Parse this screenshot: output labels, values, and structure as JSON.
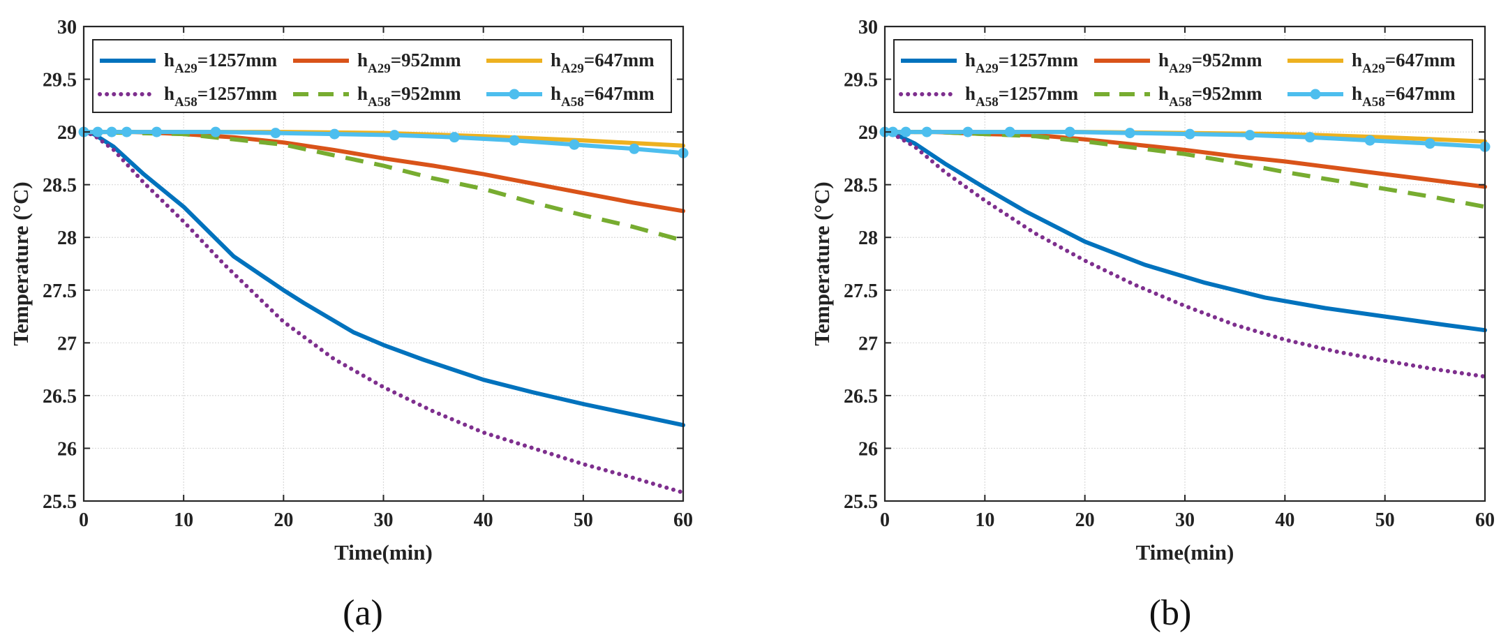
{
  "figure": {
    "series_colors": {
      "A29_1257": "#0072BD",
      "A29_952": "#D95319",
      "A29_647": "#EDB120",
      "A58_1257": "#7E2F8E",
      "A58_952": "#77AC30",
      "A58_647": "#4DBEEE"
    }
  },
  "chart_data": [
    {
      "type": "line",
      "panel_label": "(a)",
      "xlabel": "Time(min)",
      "ylabel": "Temperature (°C)",
      "xlim": [
        0,
        60
      ],
      "ylim": [
        25.5,
        30
      ],
      "xticks": [
        "0",
        "10",
        "20",
        "30",
        "40",
        "50",
        "60"
      ],
      "yticks": [
        "25.5",
        "26",
        "26.5",
        "27",
        "27.5",
        "28",
        "28.5",
        "29",
        "29.5",
        "30"
      ],
      "grid": true,
      "legend_position": "top",
      "series": [
        {
          "key": "A29_1257",
          "name_main": "h",
          "name_sub": "A29",
          "name_rest": "=1257mm",
          "style": "solid",
          "x": [
            0,
            1,
            3,
            6,
            10,
            15,
            20,
            22,
            27,
            30,
            34,
            40,
            45,
            50,
            55,
            60
          ],
          "values": [
            29.0,
            28.98,
            28.86,
            28.6,
            28.29,
            27.82,
            27.5,
            27.38,
            27.1,
            26.98,
            26.84,
            26.65,
            26.53,
            26.42,
            26.32,
            26.22
          ]
        },
        {
          "key": "A29_952",
          "name_main": "h",
          "name_sub": "A29",
          "name_rest": "=952mm",
          "style": "solid",
          "x": [
            0,
            5,
            10,
            15,
            20,
            25,
            30,
            35,
            40,
            45,
            50,
            55,
            60
          ],
          "values": [
            29.0,
            29.0,
            28.98,
            28.95,
            28.9,
            28.83,
            28.75,
            28.68,
            28.6,
            28.51,
            28.42,
            28.33,
            28.25
          ]
        },
        {
          "key": "A29_647",
          "name_main": "h",
          "name_sub": "A29",
          "name_rest": "=647mm",
          "style": "solid",
          "x": [
            0,
            10,
            20,
            30,
            40,
            50,
            60
          ],
          "values": [
            29.0,
            29.0,
            29.0,
            28.99,
            28.96,
            28.92,
            28.87
          ]
        },
        {
          "key": "A58_1257",
          "name_main": "h",
          "name_sub": "A58",
          "name_rest": "=1257mm",
          "style": "dotted",
          "x": [
            0,
            1,
            3,
            6,
            10,
            14,
            20,
            25,
            30,
            35,
            40,
            45,
            50,
            55,
            60
          ],
          "values": [
            29.0,
            28.97,
            28.83,
            28.52,
            28.15,
            27.75,
            27.2,
            26.85,
            26.58,
            26.35,
            26.15,
            26.0,
            25.85,
            25.72,
            25.58
          ]
        },
        {
          "key": "A58_952",
          "name_main": "h",
          "name_sub": "A58",
          "name_rest": "=952mm",
          "style": "dashed",
          "x": [
            0,
            5,
            10,
            15,
            20,
            25,
            30,
            35,
            40,
            45,
            50,
            55,
            60
          ],
          "values": [
            29.0,
            28.99,
            28.98,
            28.93,
            28.88,
            28.78,
            28.68,
            28.56,
            28.46,
            28.33,
            28.21,
            28.1,
            27.97
          ]
        },
        {
          "key": "A58_647",
          "name_main": "h",
          "name_sub": "A58",
          "name_rest": "=647mm",
          "style": "marker",
          "x": [
            0,
            1.4,
            2.8,
            4.3,
            7.3,
            13.2,
            19.2,
            25.1,
            31.1,
            37.1,
            43.1,
            49.1,
            55.1,
            60
          ],
          "values": [
            29.0,
            29.0,
            29.0,
            29.0,
            29.0,
            29.0,
            28.99,
            28.98,
            28.97,
            28.95,
            28.92,
            28.88,
            28.84,
            28.8
          ]
        }
      ]
    },
    {
      "type": "line",
      "panel_label": "(b)",
      "xlabel": "Time(min)",
      "ylabel": "Temperature (°C)",
      "xlim": [
        0,
        60
      ],
      "ylim": [
        25.5,
        30
      ],
      "xticks": [
        "0",
        "10",
        "20",
        "30",
        "40",
        "50",
        "60"
      ],
      "yticks": [
        "25.5",
        "26",
        "26.5",
        "27",
        "27.5",
        "28",
        "28.5",
        "29",
        "29.5",
        "30"
      ],
      "grid": true,
      "legend_position": "top",
      "series": [
        {
          "key": "A29_1257",
          "name_main": "h",
          "name_sub": "A29",
          "name_rest": "=1257mm",
          "style": "solid",
          "x": [
            0,
            1,
            3,
            6,
            10,
            14,
            20,
            26,
            32,
            38,
            44,
            50,
            56,
            60
          ],
          "values": [
            29.0,
            28.98,
            28.89,
            28.7,
            28.47,
            28.25,
            27.96,
            27.74,
            27.57,
            27.43,
            27.33,
            27.25,
            27.17,
            27.12
          ]
        },
        {
          "key": "A29_952",
          "name_main": "h",
          "name_sub": "A29",
          "name_rest": "=952mm",
          "style": "solid",
          "x": [
            0,
            5,
            10,
            15,
            20,
            25,
            30,
            35,
            40,
            45,
            50,
            55,
            60
          ],
          "values": [
            29.0,
            29.0,
            28.98,
            28.97,
            28.93,
            28.88,
            28.83,
            28.77,
            28.72,
            28.66,
            28.6,
            28.54,
            28.48
          ]
        },
        {
          "key": "A29_647",
          "name_main": "h",
          "name_sub": "A29",
          "name_rest": "=647mm",
          "style": "solid",
          "x": [
            0,
            10,
            20,
            30,
            40,
            50,
            60
          ],
          "values": [
            29.0,
            29.0,
            29.0,
            28.99,
            28.98,
            28.95,
            28.91
          ]
        },
        {
          "key": "A58_1257",
          "name_main": "h",
          "name_sub": "A58",
          "name_rest": "=1257mm",
          "style": "dotted",
          "x": [
            0,
            1,
            3,
            6,
            10,
            15,
            20,
            25,
            30,
            35,
            40,
            45,
            50,
            55,
            60
          ],
          "values": [
            29.0,
            28.97,
            28.86,
            28.62,
            28.35,
            28.04,
            27.78,
            27.55,
            27.35,
            27.17,
            27.03,
            26.92,
            26.83,
            26.75,
            26.68
          ]
        },
        {
          "key": "A58_952",
          "name_main": "h",
          "name_sub": "A58",
          "name_rest": "=952mm",
          "style": "dashed",
          "x": [
            0,
            5,
            10,
            15,
            20,
            25,
            30,
            35,
            40,
            45,
            50,
            55,
            60
          ],
          "values": [
            29.0,
            29.0,
            28.98,
            28.96,
            28.91,
            28.85,
            28.79,
            28.71,
            28.62,
            28.54,
            28.46,
            28.38,
            28.29
          ]
        },
        {
          "key": "A58_647",
          "name_main": "h",
          "name_sub": "A58",
          "name_rest": "=647mm",
          "style": "marker",
          "x": [
            0,
            0.8,
            2.1,
            4.2,
            8.3,
            12.5,
            18.5,
            24.5,
            30.5,
            36.5,
            42.5,
            48.5,
            54.5,
            60
          ],
          "values": [
            29.0,
            29.0,
            29.0,
            29.0,
            29.0,
            29.0,
            29.0,
            28.99,
            28.98,
            28.97,
            28.95,
            28.92,
            28.89,
            28.86
          ]
        }
      ]
    }
  ]
}
